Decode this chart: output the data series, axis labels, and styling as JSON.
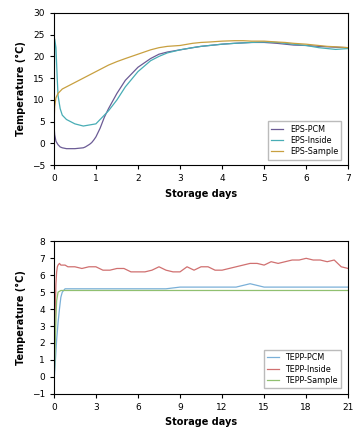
{
  "chart1": {
    "xlabel": "Storage days",
    "ylabel": "Temperature (°C)",
    "xlim": [
      0,
      7
    ],
    "ylim": [
      -5,
      30
    ],
    "yticks": [
      -5,
      0,
      5,
      10,
      15,
      20,
      25,
      30
    ],
    "xticks": [
      0,
      1,
      2,
      3,
      4,
      5,
      6,
      7
    ],
    "lines": {
      "EPS-PCM": {
        "color": "#6b5b95",
        "x": [
          0,
          0.02,
          0.05,
          0.1,
          0.15,
          0.2,
          0.3,
          0.4,
          0.5,
          0.6,
          0.7,
          0.75,
          0.8,
          0.85,
          0.9,
          0.95,
          1.0,
          1.1,
          1.2,
          1.3,
          1.5,
          1.7,
          2.0,
          2.3,
          2.5,
          2.7,
          3.0,
          3.3,
          3.5,
          3.7,
          4.0,
          4.3,
          4.5,
          4.7,
          5.0,
          5.3,
          5.5,
          5.7,
          6.0,
          6.3,
          6.5,
          6.7,
          7.0
        ],
        "y": [
          4.5,
          2.0,
          0.5,
          -0.3,
          -0.8,
          -1.0,
          -1.2,
          -1.2,
          -1.2,
          -1.1,
          -1.0,
          -0.8,
          -0.5,
          -0.2,
          0.2,
          0.8,
          1.5,
          3.5,
          6.0,
          8.0,
          11.5,
          14.5,
          17.5,
          19.5,
          20.5,
          21.0,
          21.5,
          22.0,
          22.3,
          22.5,
          22.8,
          23.0,
          23.1,
          23.2,
          23.2,
          23.0,
          22.8,
          22.6,
          22.5,
          22.3,
          22.2,
          22.1,
          22.0
        ]
      },
      "EPS-Inside": {
        "color": "#48adb5",
        "x": [
          0,
          0.02,
          0.05,
          0.08,
          0.1,
          0.15,
          0.2,
          0.3,
          0.5,
          0.7,
          1.0,
          1.3,
          1.5,
          1.7,
          2.0,
          2.3,
          2.5,
          2.7,
          3.0,
          3.3,
          3.5,
          3.7,
          4.0,
          4.3,
          4.5,
          4.7,
          5.0,
          5.3,
          5.5,
          5.7,
          6.0,
          6.3,
          6.5,
          6.7,
          7.0
        ],
        "y": [
          4.0,
          24.0,
          22.0,
          15.0,
          11.0,
          8.0,
          6.5,
          5.5,
          4.5,
          4.0,
          4.5,
          7.5,
          10.0,
          13.0,
          16.5,
          19.0,
          20.0,
          20.8,
          21.5,
          22.0,
          22.3,
          22.5,
          22.8,
          23.0,
          23.1,
          23.2,
          23.3,
          23.2,
          23.0,
          22.8,
          22.5,
          22.0,
          21.8,
          21.6,
          21.8
        ]
      },
      "EPS-Sample": {
        "color": "#c8a040",
        "x": [
          0,
          0.02,
          0.05,
          0.1,
          0.2,
          0.3,
          0.5,
          0.7,
          1.0,
          1.3,
          1.5,
          1.7,
          2.0,
          2.3,
          2.5,
          2.7,
          3.0,
          3.3,
          3.5,
          3.7,
          4.0,
          4.3,
          4.5,
          4.7,
          5.0,
          5.3,
          5.5,
          5.7,
          6.0,
          6.3,
          6.5,
          6.7,
          7.0
        ],
        "y": [
          3.5,
          8.5,
          10.5,
          11.5,
          12.5,
          13.0,
          14.0,
          15.0,
          16.5,
          18.0,
          18.8,
          19.5,
          20.5,
          21.5,
          22.0,
          22.3,
          22.5,
          23.0,
          23.2,
          23.3,
          23.5,
          23.6,
          23.6,
          23.5,
          23.5,
          23.3,
          23.2,
          23.0,
          22.8,
          22.5,
          22.3,
          22.2,
          22.0
        ]
      }
    }
  },
  "chart2": {
    "xlabel": "Storage days",
    "ylabel": "Temperature (°C)",
    "xlim": [
      0,
      21
    ],
    "ylim": [
      -1,
      8
    ],
    "yticks": [
      -1,
      0,
      1,
      2,
      3,
      4,
      5,
      6,
      7,
      8
    ],
    "xticks": [
      0,
      3,
      6,
      9,
      12,
      15,
      18,
      21
    ],
    "lines": {
      "TEPP-PCM": {
        "color": "#7ab0d8",
        "x": [
          0,
          0.05,
          0.1,
          0.15,
          0.2,
          0.3,
          0.4,
          0.5,
          0.6,
          0.7,
          0.8,
          1.0,
          1.5,
          2.0,
          3.0,
          4.0,
          5.0,
          6.0,
          7.0,
          8.0,
          9.0,
          10.0,
          11.0,
          12.0,
          13.0,
          14.0,
          15.0,
          16.0,
          17.0,
          18.0,
          19.0,
          20.0,
          21.0
        ],
        "y": [
          -0.3,
          0.2,
          0.8,
          1.5,
          2.2,
          3.2,
          4.0,
          4.7,
          5.0,
          5.1,
          5.2,
          5.2,
          5.2,
          5.2,
          5.2,
          5.2,
          5.2,
          5.2,
          5.2,
          5.2,
          5.3,
          5.3,
          5.3,
          5.3,
          5.3,
          5.5,
          5.3,
          5.3,
          5.3,
          5.3,
          5.3,
          5.3,
          5.3
        ]
      },
      "TEPP-Inside": {
        "color": "#d07070",
        "x": [
          0,
          0.05,
          0.1,
          0.15,
          0.2,
          0.25,
          0.3,
          0.4,
          0.5,
          0.6,
          0.7,
          0.8,
          1.0,
          1.2,
          1.5,
          2.0,
          2.5,
          3.0,
          3.5,
          4.0,
          4.5,
          5.0,
          5.5,
          6.0,
          6.5,
          7.0,
          7.5,
          8.0,
          8.5,
          9.0,
          9.5,
          10.0,
          10.5,
          11.0,
          11.5,
          12.0,
          12.5,
          13.0,
          13.5,
          14.0,
          14.5,
          15.0,
          15.5,
          16.0,
          16.5,
          17.0,
          17.5,
          18.0,
          18.5,
          19.0,
          19.5,
          20.0,
          20.5,
          21.0
        ],
        "y": [
          0.5,
          2.0,
          4.0,
          5.5,
          6.2,
          6.5,
          6.6,
          6.7,
          6.6,
          6.6,
          6.6,
          6.6,
          6.5,
          6.5,
          6.5,
          6.4,
          6.5,
          6.5,
          6.3,
          6.3,
          6.4,
          6.4,
          6.2,
          6.2,
          6.2,
          6.3,
          6.5,
          6.3,
          6.2,
          6.2,
          6.5,
          6.3,
          6.5,
          6.5,
          6.3,
          6.3,
          6.4,
          6.5,
          6.6,
          6.7,
          6.7,
          6.6,
          6.8,
          6.7,
          6.8,
          6.9,
          6.9,
          7.0,
          6.9,
          6.9,
          6.8,
          6.9,
          6.5,
          6.4
        ]
      },
      "TEPP-Sample": {
        "color": "#90c070",
        "x": [
          0,
          0.05,
          0.1,
          0.15,
          0.2,
          0.3,
          0.5,
          0.7,
          1.0,
          2.0,
          3.0,
          6.0,
          9.0,
          12.0,
          15.0,
          18.0,
          21.0
        ],
        "y": [
          -0.2,
          0.5,
          2.0,
          3.5,
          4.5,
          5.0,
          5.1,
          5.1,
          5.1,
          5.1,
          5.1,
          5.1,
          5.1,
          5.1,
          5.1,
          5.1,
          5.1
        ]
      }
    }
  }
}
